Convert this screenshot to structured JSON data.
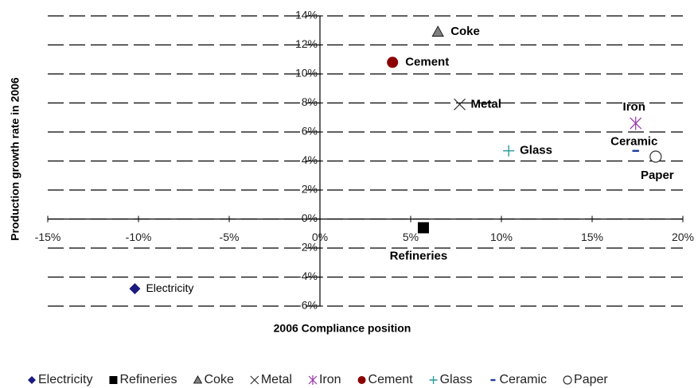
{
  "chart_data": {
    "type": "scatter",
    "x_label": "2006 Compliance position",
    "y_label": "Production growth rate in 2006",
    "xlim": [
      -15,
      20
    ],
    "ylim": [
      -6,
      14
    ],
    "xticks": [
      {
        "value": -15,
        "label": "-15%"
      },
      {
        "value": -10,
        "label": "-10%"
      },
      {
        "value": -5,
        "label": "-5%"
      },
      {
        "value": 0,
        "label": "0%"
      },
      {
        "value": 5,
        "label": "5%"
      },
      {
        "value": 10,
        "label": "10%"
      },
      {
        "value": 15,
        "label": "15%"
      },
      {
        "value": 20,
        "label": "20%"
      }
    ],
    "yticks": [
      {
        "value": -6,
        "label": "-6%"
      },
      {
        "value": -4,
        "label": "-4%"
      },
      {
        "value": -2,
        "label": "-2%"
      },
      {
        "value": 0,
        "label": "0%"
      },
      {
        "value": 2,
        "label": "2%"
      },
      {
        "value": 4,
        "label": "4%"
      },
      {
        "value": 6,
        "label": "6%"
      },
      {
        "value": 8,
        "label": "8%"
      },
      {
        "value": 10,
        "label": "10%"
      },
      {
        "value": 12,
        "label": "12%"
      },
      {
        "value": 14,
        "label": "14%"
      }
    ],
    "grid": true,
    "legend": "bottom",
    "series": [
      {
        "name": "Electricity",
        "color": "#1a1a80",
        "marker": "diamond",
        "x": [
          -10.2
        ],
        "values": [
          -4.8
        ]
      },
      {
        "name": "Refineries",
        "color": "#000000",
        "marker": "square",
        "x": [
          5.7
        ],
        "values": [
          -0.6
        ]
      },
      {
        "name": "Coke",
        "color": "#808080",
        "marker": "triangle",
        "x": [
          6.5
        ],
        "values": [
          12.9
        ]
      },
      {
        "name": "Metal",
        "color": "#333333",
        "marker": "x",
        "x": [
          7.7
        ],
        "values": [
          7.9
        ]
      },
      {
        "name": "Iron",
        "color": "#9933aa",
        "marker": "star",
        "x": [
          17.4
        ],
        "values": [
          6.6
        ]
      },
      {
        "name": "Cement",
        "color": "#8b0000",
        "marker": "circle",
        "x": [
          4.0
        ],
        "values": [
          10.8
        ]
      },
      {
        "name": "Glass",
        "color": "#2a9a9a",
        "marker": "plus",
        "x": [
          10.4
        ],
        "values": [
          4.7
        ]
      },
      {
        "name": "Ceramic",
        "color": "#1a3aa0",
        "marker": "dash",
        "x": [
          17.4
        ],
        "values": [
          4.7
        ]
      },
      {
        "name": "Paper",
        "color": "#333333",
        "marker": "open-circle",
        "x": [
          18.5
        ],
        "values": [
          4.3
        ]
      }
    ]
  }
}
